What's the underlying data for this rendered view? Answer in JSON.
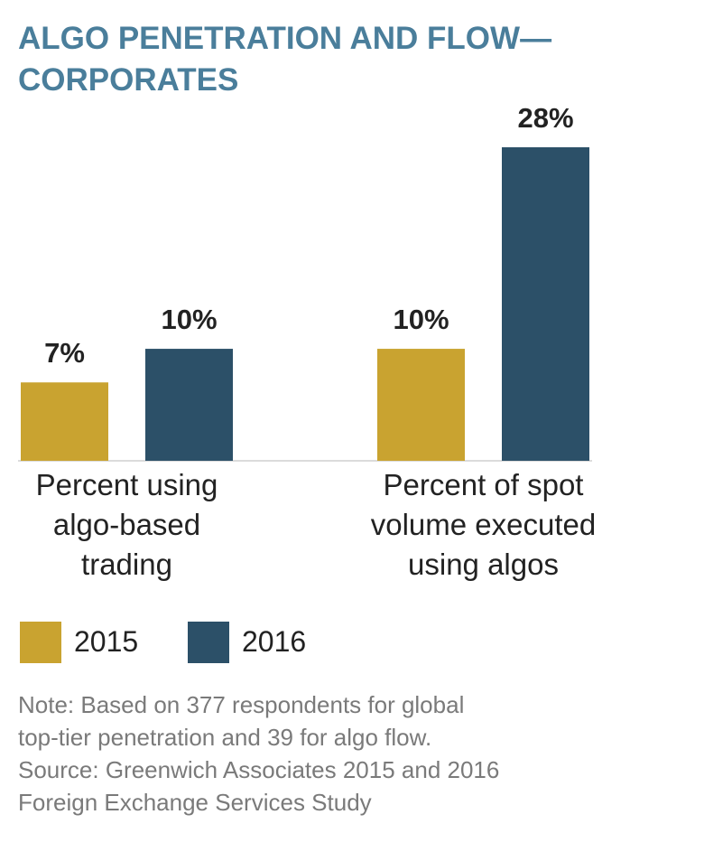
{
  "chart_data": {
    "type": "bar",
    "title": "ALGO PENETRATION AND FLOW—\nCORPORATES",
    "categories": [
      "Percent using\nalgo-based\ntrading",
      "Percent of spot\nvolume executed\nusing algos"
    ],
    "series": [
      {
        "name": "2015",
        "color": "#c9a330",
        "values": [
          7,
          10
        ],
        "value_labels": [
          "7%",
          "10%"
        ]
      },
      {
        "name": "2016",
        "color": "#2c5068",
        "values": [
          10,
          28
        ],
        "value_labels": [
          "10%",
          "28%"
        ]
      }
    ],
    "note": "Note: Based on 377 respondents for global\ntop-tier penetration and 39 for algo flow.\nSource: Greenwich Associates 2015 and 2016\nForeign Exchange Services Study"
  }
}
